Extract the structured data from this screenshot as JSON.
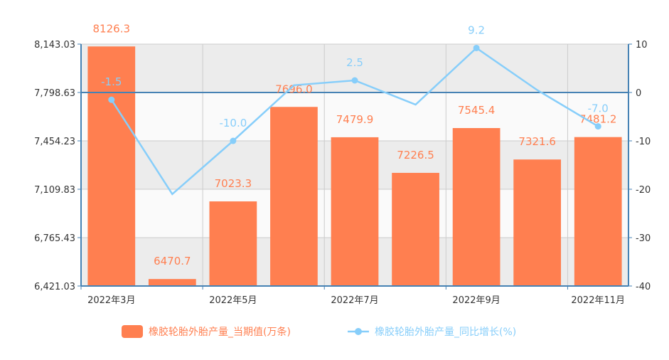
{
  "chart_data": {
    "type": "bar",
    "categories": [
      "2022年3月",
      "2022年4月",
      "2022年5月",
      "2022年6月",
      "2022年7月",
      "2022年8月",
      "2022年9月",
      "2022年10月",
      "2022年11月"
    ],
    "x_tick_labels": [
      "2022年3月",
      "2022年5月",
      "2022年7月",
      "2022年9月",
      "2022年11月"
    ],
    "series": [
      {
        "name": "橡胶轮胎外胎产量_当期值(万条)",
        "type": "bar",
        "axis": "left",
        "color": "#ff7f50",
        "values": [
          8126.3,
          6470.7,
          7023.3,
          7696.0,
          7479.9,
          7226.5,
          7545.4,
          7321.6,
          7481.2
        ],
        "labels": [
          "8126.3",
          "6470.7",
          "7023.3",
          "7696.0",
          "7479.9",
          "7226.5",
          "7545.4",
          "7321.6",
          "7481.2"
        ]
      },
      {
        "name": "橡胶轮胎外胎产量_同比增长(%)",
        "type": "line",
        "axis": "right",
        "color": "#87cefa",
        "values": [
          -1.5,
          -21.0,
          -10.0,
          1.5,
          2.5,
          -2.5,
          9.2,
          0.5,
          -7.0
        ],
        "labels": [
          "-1.5",
          "",
          "-10.0",
          "",
          "2.5",
          "",
          "9.2",
          "",
          "-7.0"
        ]
      }
    ],
    "y_left": {
      "ylim": [
        6421.03,
        8143.03
      ],
      "ticks": [
        "6,421.03",
        "6,765.43",
        "7,109.83",
        "7,454.23",
        "7,798.63",
        "8,143.03"
      ]
    },
    "y_right": {
      "ylim": [
        -40,
        10
      ],
      "ticks": [
        "-40",
        "-30",
        "-20",
        "-10",
        "0",
        "10"
      ]
    },
    "grid": true,
    "legend_position": "bottom",
    "axis_color": "#4682b4"
  }
}
